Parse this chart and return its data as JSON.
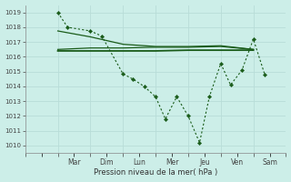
{
  "xlabel": "Pression niveau de la mer( hPa )",
  "bg_color": "#cceee8",
  "grid_color": "#b8ddd8",
  "line_color": "#1a5c1a",
  "ylim": [
    1009.5,
    1019.5
  ],
  "yticks": [
    1010,
    1011,
    1012,
    1013,
    1014,
    1015,
    1016,
    1017,
    1018,
    1019
  ],
  "days": [
    "Mar",
    "Dim",
    "Lun",
    "Mer",
    "Jeu",
    "Ven",
    "Sam"
  ],
  "xlim": [
    -0.5,
    6.5
  ],
  "line1_x": [
    0,
    0.3,
    1.0,
    1.35,
    2.0,
    2.3,
    2.65,
    3.0,
    3.3,
    3.65,
    4.0,
    4.35,
    4.65,
    5.0,
    5.3,
    5.65,
    6.0,
    6.35
  ],
  "line1_y": [
    1019.0,
    1018.0,
    1017.75,
    1017.4,
    1014.85,
    1014.5,
    1014.0,
    1013.3,
    1011.8,
    1013.3,
    1012.0,
    1010.2,
    1013.3,
    1015.55,
    1014.1,
    1015.1,
    1017.2,
    1014.8
  ],
  "line2_x": [
    0,
    1,
    2,
    3,
    4,
    5,
    6
  ],
  "line2_y": [
    1016.4,
    1016.4,
    1016.4,
    1016.4,
    1016.45,
    1016.45,
    1016.45
  ],
  "line3_x": [
    0,
    1,
    2,
    3,
    4,
    5,
    6
  ],
  "line3_y": [
    1016.5,
    1016.6,
    1016.6,
    1016.65,
    1016.65,
    1016.7,
    1016.5
  ],
  "line4_x": [
    0,
    1,
    2,
    3,
    4,
    5,
    6
  ],
  "line4_y": [
    1017.75,
    1017.35,
    1016.85,
    1016.7,
    1016.7,
    1016.75,
    1016.5
  ]
}
